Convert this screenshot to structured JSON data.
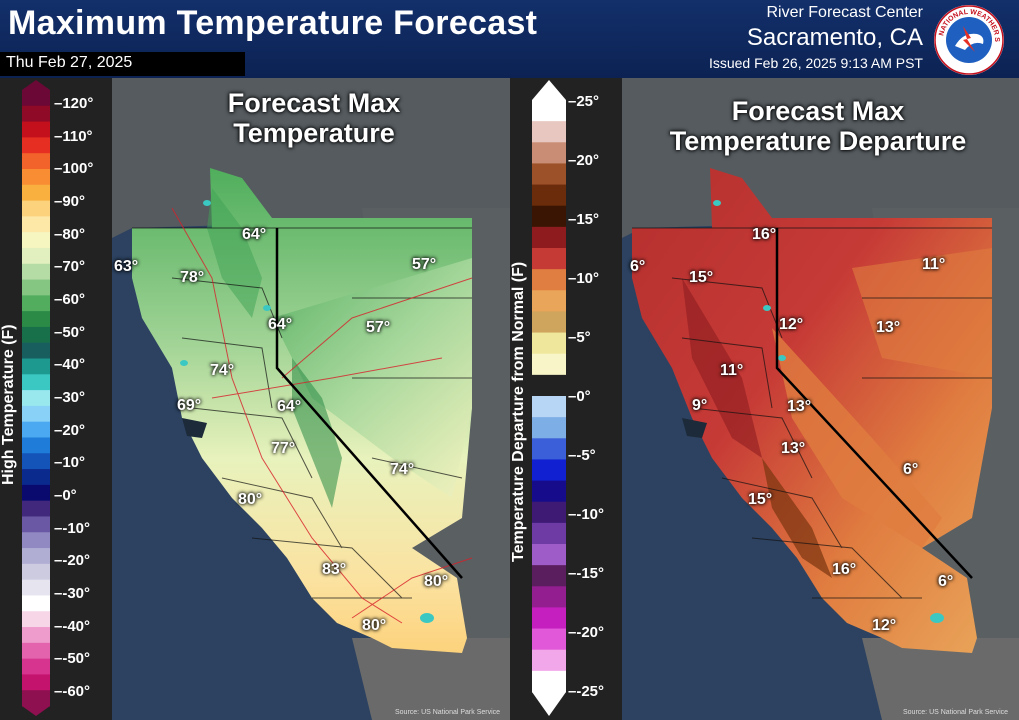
{
  "header": {
    "title": "Maximum Temperature Forecast",
    "date": "Thu Feb 27, 2025",
    "office_line1": "River Forecast Center",
    "office_line2": "Sacramento, CA",
    "issued": "Issued Feb 26, 2025 9:13 AM PST",
    "logo_text": "NATIONAL WEATHER SERVICE"
  },
  "temp_legend": {
    "axis_label": "High Temperature (F)",
    "ticks": [
      "120°",
      "110°",
      "100°",
      "90°",
      "80°",
      "70°",
      "60°",
      "50°",
      "40°",
      "30°",
      "20°",
      "10°",
      "0°",
      "-10°",
      "-20°",
      "-30°",
      "-40°",
      "-50°",
      "-60°"
    ],
    "colors": [
      "#6b0836",
      "#8f0a26",
      "#c4101d",
      "#e62e22",
      "#f2622b",
      "#f88d33",
      "#f9b03e",
      "#fcd27c",
      "#fde8a7",
      "#f5f6c0",
      "#e2f0c0",
      "#b4dca4",
      "#86c683",
      "#53ad5f",
      "#2a8a46",
      "#17704a",
      "#195e5e",
      "#1d9990",
      "#3cc8c2",
      "#98e8ee",
      "#8ad1f7",
      "#4aa9f0",
      "#1f7cd8",
      "#1453b7",
      "#0b2a8e",
      "#0a0a6e",
      "#42287d",
      "#6a58a4",
      "#9189c2",
      "#b1aed4",
      "#cccbe0",
      "#e5e4ef",
      "#ffffff",
      "#f7d6e8",
      "#ee9ccb",
      "#e364ad",
      "#d73490",
      "#c4136d",
      "#8e1050"
    ]
  },
  "departure_legend": {
    "axis_label": "Temperature Departure from Normal (F)",
    "ticks": [
      "25°",
      "20°",
      "15°",
      "10°",
      "5°",
      "0°",
      "-5°",
      "-10°",
      "-15°",
      "-20°",
      "-25°"
    ],
    "colors": [
      "#ffffff",
      "#e8c7c0",
      "#c98d75",
      "#9c5128",
      "#6b2c0b",
      "#3a1503",
      "#8e1c1f",
      "#c63a36",
      "#e07d40",
      "#e9a55a",
      "#cfa45c",
      "#efe89c",
      "#f8f6c8",
      "#222222",
      "#b7d6f5",
      "#7eaee6",
      "#3b5fd9",
      "#1121d2",
      "#160c8b",
      "#3e1a75",
      "#6e3aa3",
      "#9e5cc9",
      "#5a1e5e",
      "#931e8f",
      "#c61fc0",
      "#e159d8",
      "#f1a7ea",
      "#ffffff"
    ]
  },
  "map_left": {
    "title_line1": "Forecast Max",
    "title_line2": "Temperature",
    "labels": [
      {
        "text": "64°"
      },
      {
        "text": "63°"
      },
      {
        "text": "78°"
      },
      {
        "text": "57°"
      },
      {
        "text": "64°"
      },
      {
        "text": "57°"
      },
      {
        "text": "74°"
      },
      {
        "text": "69°"
      },
      {
        "text": "64°"
      },
      {
        "text": "77°"
      },
      {
        "text": "74°"
      },
      {
        "text": "80°"
      },
      {
        "text": "83°"
      },
      {
        "text": "80°"
      },
      {
        "text": "80°"
      }
    ],
    "source": "Source: US National Park Service"
  },
  "map_right": {
    "title_line1": "Forecast Max",
    "title_line2": "Temperature Departure",
    "labels": [
      {
        "text": "16°"
      },
      {
        "text": "6°"
      },
      {
        "text": "15°"
      },
      {
        "text": "11°"
      },
      {
        "text": "12°"
      },
      {
        "text": "13°"
      },
      {
        "text": "11°"
      },
      {
        "text": "9°"
      },
      {
        "text": "13°"
      },
      {
        "text": "13°"
      },
      {
        "text": "6°"
      },
      {
        "text": "15°"
      },
      {
        "text": "16°"
      },
      {
        "text": "6°"
      },
      {
        "text": "12°"
      }
    ],
    "source": "Source: US National Park Service"
  }
}
